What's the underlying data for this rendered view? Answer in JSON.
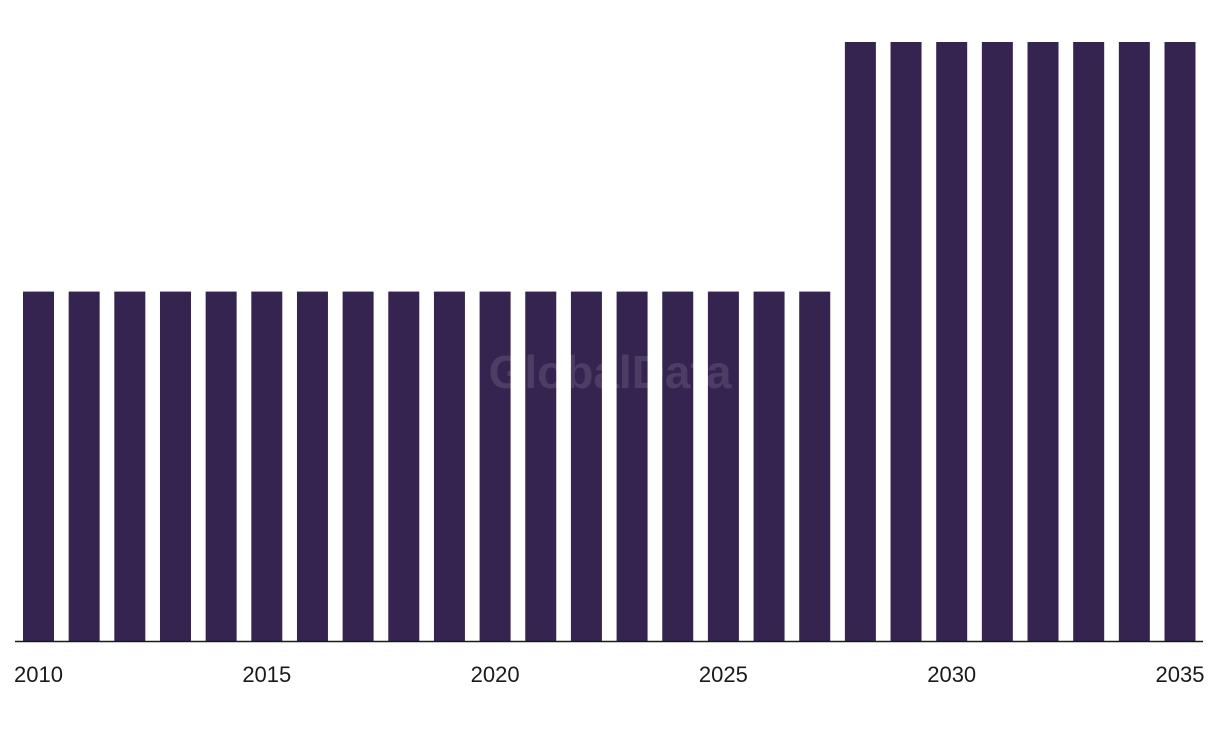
{
  "watermark": "GlobalData",
  "colors": {
    "bar": "#352350",
    "axis": "#1a1a1a"
  },
  "chart_data": {
    "type": "bar",
    "title": "",
    "xlabel": "",
    "ylabel": "",
    "grid": false,
    "legend": "none",
    "ylim": [
      0,
      1.2
    ],
    "categories": [
      "2010",
      "2011",
      "2012",
      "2013",
      "2014",
      "2015",
      "2016",
      "2017",
      "2018",
      "2019",
      "2020",
      "2021",
      "2022",
      "2023",
      "2024",
      "2025",
      "2026",
      "2027",
      "2028",
      "2029",
      "2030",
      "2031",
      "2032",
      "2033",
      "2034",
      "2035"
    ],
    "values": [
      0.7,
      0.7,
      0.7,
      0.7,
      0.7,
      0.7,
      0.7,
      0.7,
      0.7,
      0.7,
      0.7,
      0.7,
      0.7,
      0.7,
      0.7,
      0.7,
      0.7,
      0.7,
      1.2,
      1.2,
      1.2,
      1.2,
      1.2,
      1.2,
      1.2,
      1.2
    ],
    "tick_labels": [
      "2010",
      "2015",
      "2020",
      "2025",
      "2030",
      "2035"
    ]
  }
}
